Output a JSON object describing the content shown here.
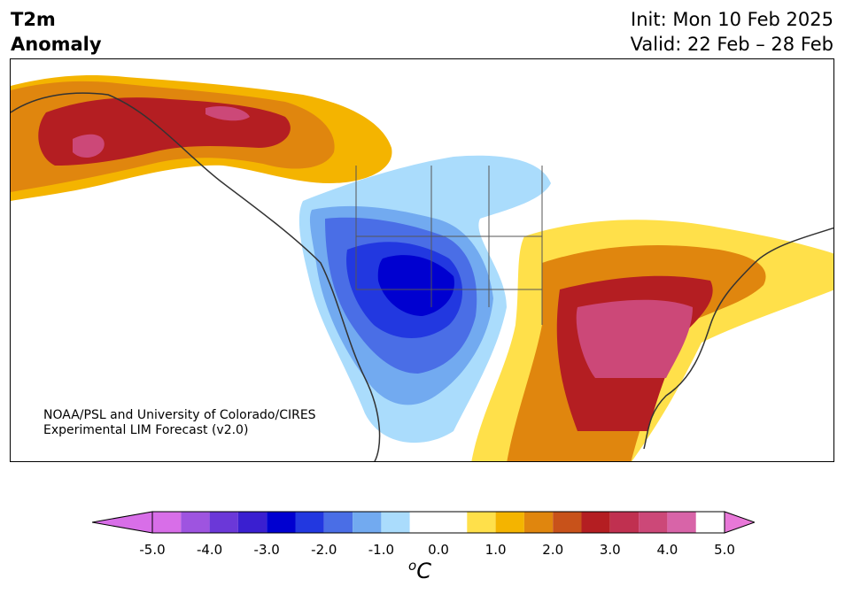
{
  "header": {
    "variable": "T2m",
    "field": "Anomaly",
    "init": "Init: Mon 10 Feb 2025",
    "valid": "Valid: 22 Feb – 28 Feb"
  },
  "credit": {
    "line1": "NOAA/PSL and University of Colorado/CIRES",
    "line2": "Experimental LIM Forecast (v2.0)"
  },
  "colorbar": {
    "ticks": [
      "-5.0",
      "-4.0",
      "-3.0",
      "-2.0",
      "-1.0",
      "0.0",
      "1.0",
      "2.0",
      "3.0",
      "4.0",
      "5.0"
    ],
    "unit_prefix": "o",
    "unit_main": "C",
    "levels": [
      -5.0,
      -4.5,
      -4.0,
      -3.5,
      -3.0,
      -2.5,
      -2.0,
      -1.5,
      -1.0,
      -0.5,
      0.5,
      1.0,
      1.5,
      2.0,
      2.5,
      3.0,
      3.5,
      4.0,
      4.5,
      5.0
    ],
    "colors": [
      "#d86ee8",
      "#9e54e0",
      "#6b38d8",
      "#3a1fd0",
      "#0000d0",
      "#2238e0",
      "#4a6ee6",
      "#72aaf0",
      "#aadcfc",
      "#ffffff",
      "#ffe04a",
      "#f4b400",
      "#e0860e",
      "#c8521a",
      "#b41e22",
      "#c03050",
      "#cc4878",
      "#d864a8",
      "#e878d8"
    ]
  },
  "map": {
    "region": "North America",
    "anomaly_areas": [
      {
        "name": "alaska-warm",
        "value_c": 3.5
      },
      {
        "name": "northwest-canada-warm",
        "value_c": 2.5
      },
      {
        "name": "western-us-cold",
        "value_c": -3.5
      },
      {
        "name": "southeast-us-warm",
        "value_c": 4.0
      },
      {
        "name": "northeast-us-warm",
        "value_c": 3.0
      }
    ]
  }
}
